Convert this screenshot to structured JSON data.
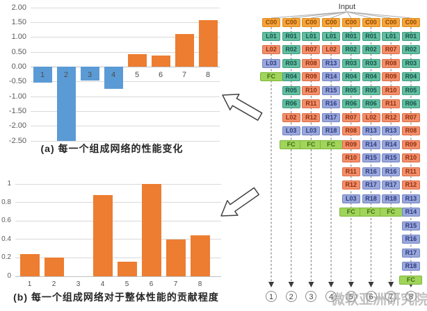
{
  "chart_data": [
    {
      "id": "a",
      "type": "bar",
      "title": "(a)  每一个组成网络的性能变化",
      "categories": [
        "1",
        "2",
        "3",
        "4",
        "5",
        "6",
        "7",
        "8"
      ],
      "values": [
        -0.52,
        -2.5,
        -0.45,
        -0.75,
        0.42,
        0.38,
        1.1,
        1.58
      ],
      "ylim": [
        -2.5,
        2.0
      ],
      "ytick_step": 0.5,
      "yticks": [
        "2.00",
        "1.50",
        "1.00",
        "0.50",
        "0.00",
        "-0.50",
        "-1.00",
        "-1.50",
        "-2.00",
        "-2.50"
      ],
      "grid": true,
      "legend": "none",
      "colors": {
        "positive": "#ED7D31",
        "negative": "#5B9BD5"
      }
    },
    {
      "id": "b",
      "type": "bar",
      "title": "(b) 每一个组成网络对于整体性能的贡献程度",
      "categories": [
        "1",
        "2",
        "3",
        "4",
        "5",
        "6",
        "7",
        "8"
      ],
      "values": [
        0.24,
        0.2,
        0,
        0.88,
        0.16,
        1.0,
        0.4,
        0.44
      ],
      "ylim": [
        0,
        1
      ],
      "ytick_step": 0.2,
      "yticks": [
        "1",
        "0.8",
        "0.6",
        "0.4",
        "0.2",
        "0"
      ],
      "grid": true,
      "legend": "none",
      "colors": {
        "positive": "#ED7D31",
        "negative": "#ED7D31"
      }
    }
  ],
  "diagram": {
    "input_label": "Input",
    "watermark": "微软亚洲研究院",
    "columns": [
      {
        "output": "1",
        "cells": [
          "C00",
          "L01",
          "L02",
          "L03",
          "FC"
        ]
      },
      {
        "output": "2",
        "cells": [
          "C00",
          "R01",
          "R02",
          "R03",
          "R04",
          "R05",
          "R06",
          "L02",
          "L03",
          "FC"
        ]
      },
      {
        "output": "3",
        "cells": [
          "C00",
          "L01",
          "R07",
          "R08",
          "R09",
          "R10",
          "R11",
          "R12",
          "L03",
          "FC"
        ]
      },
      {
        "output": "4",
        "cells": [
          "C00",
          "L01",
          "L02",
          "R13",
          "R14",
          "R15",
          "R16",
          "R17",
          "R18",
          "FC"
        ]
      },
      {
        "output": "5",
        "cells": [
          "C00",
          "R01",
          "R02",
          "R03",
          "R04",
          "R05",
          "R06",
          "R07",
          "R08",
          "R09",
          "R10",
          "R11",
          "R12",
          "L03",
          "FC"
        ]
      },
      {
        "output": "6",
        "cells": [
          "C00",
          "R01",
          "R02",
          "R03",
          "R04",
          "R05",
          "R06",
          "L02",
          "R13",
          "R14",
          "R15",
          "R16",
          "R17",
          "R18",
          "FC"
        ]
      },
      {
        "output": "7",
        "cells": [
          "C00",
          "L01",
          "R07",
          "R08",
          "R09",
          "R10",
          "R11",
          "R12",
          "R13",
          "R14",
          "R15",
          "R16",
          "R17",
          "R18",
          "FC"
        ]
      },
      {
        "output": "8",
        "cells": [
          "C00",
          "R01",
          "R02",
          "R03",
          "R04",
          "R05",
          "R06",
          "R07",
          "R08",
          "R09",
          "R10",
          "R11",
          "R12",
          "R13",
          "R14",
          "R15",
          "R16",
          "R17",
          "R18",
          "FC"
        ]
      }
    ],
    "cell_styles": {
      "c00": {
        "bg": "#F5A33C",
        "border": "#DE8A14",
        "text": "#8F4A00"
      },
      "green": {
        "bg": "#63BD9F",
        "border": "#3E9D80",
        "text": "#14524A"
      },
      "salmon": {
        "bg": "#F18F6C",
        "border": "#DE6A42",
        "text": "#8F2E0B"
      },
      "purple": {
        "bg": "#9AA7DA",
        "border": "#7385C6",
        "text": "#2C3B80"
      },
      "fc": {
        "bg": "#A0D45B",
        "border": "#7DB639",
        "text": "#3F6D15"
      }
    },
    "line_color": "#7F7F7F",
    "fan_line_color": "#ABABAB"
  },
  "colors": {
    "grid": "#D9D9D9",
    "axis": "#BFBFBF",
    "tick_text": "#595959",
    "arrow_stroke": "#404040"
  }
}
